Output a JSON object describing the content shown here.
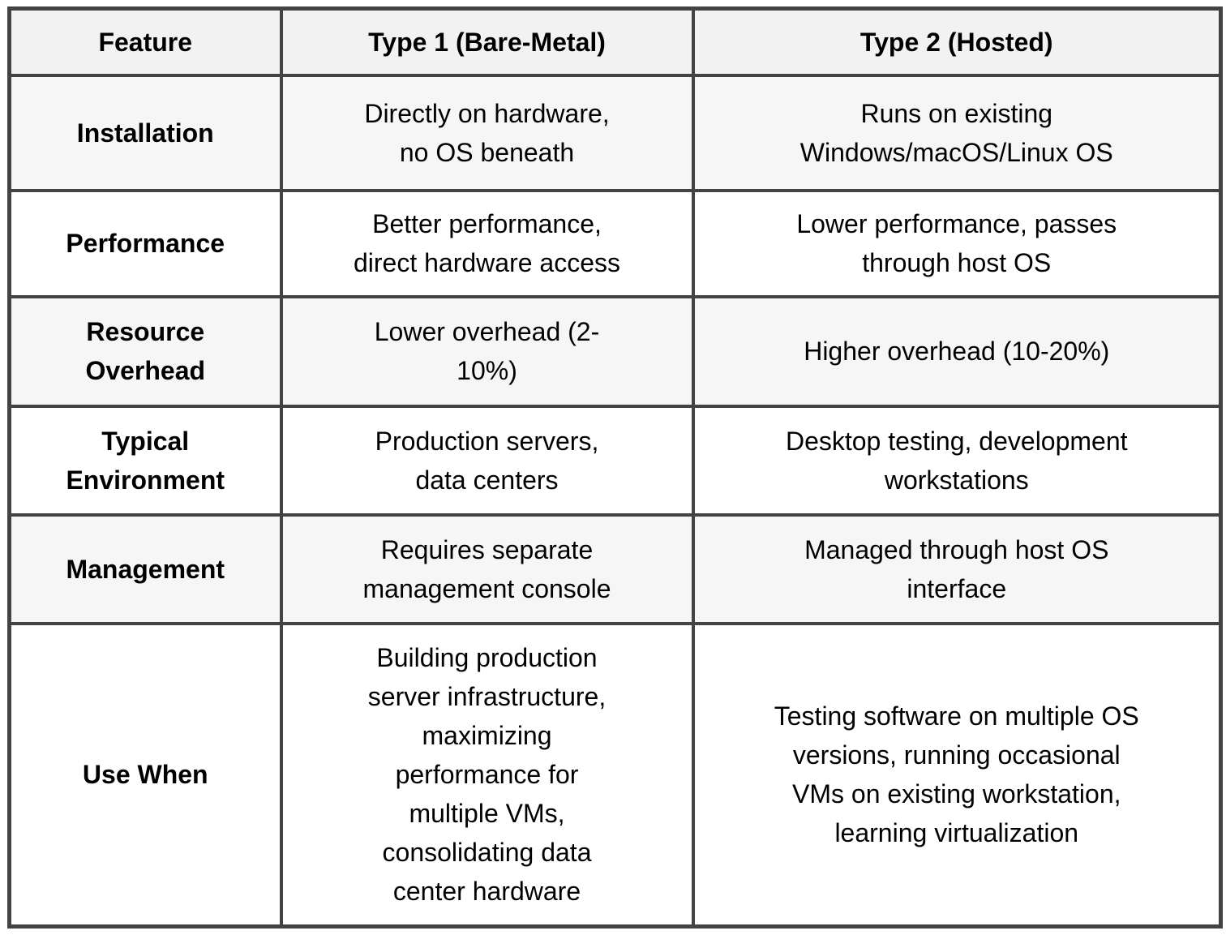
{
  "colors": {
    "border": "#434343",
    "header_background": "#f2f2f2",
    "striped_row_background": "#f6f6f6",
    "plain_row_background": "#ffffff",
    "text": "#000000"
  },
  "table": {
    "header": {
      "feature": "Feature",
      "type1": "Type 1 (Bare-Metal)",
      "type2": "Type 2 (Hosted)"
    },
    "rows": [
      {
        "feature": "Installation",
        "type1": "Directly on hardware,\nno OS beneath",
        "type2": "Runs on existing\nWindows/macOS/Linux OS"
      },
      {
        "feature": "Performance",
        "type1": "Better performance,\ndirect hardware access",
        "type2": "Lower performance, passes\nthrough host OS"
      },
      {
        "feature": "Resource\nOverhead",
        "type1": "Lower overhead (2-\n10%)",
        "type2": "Higher overhead (10-20%)"
      },
      {
        "feature": "Typical\nEnvironment",
        "type1": "Production servers,\ndata centers",
        "type2": "Desktop testing, development\nworkstations"
      },
      {
        "feature": "Management",
        "type1": "Requires separate\nmanagement console",
        "type2": "Managed through host OS\ninterface"
      },
      {
        "feature": "Use When",
        "type1": "Building production\nserver infrastructure,\nmaximizing\nperformance for\nmultiple VMs,\nconsolidating data\ncenter hardware",
        "type2": "Testing software on multiple OS\nversions, running occasional\nVMs on existing workstation,\nlearning virtualization"
      }
    ]
  }
}
